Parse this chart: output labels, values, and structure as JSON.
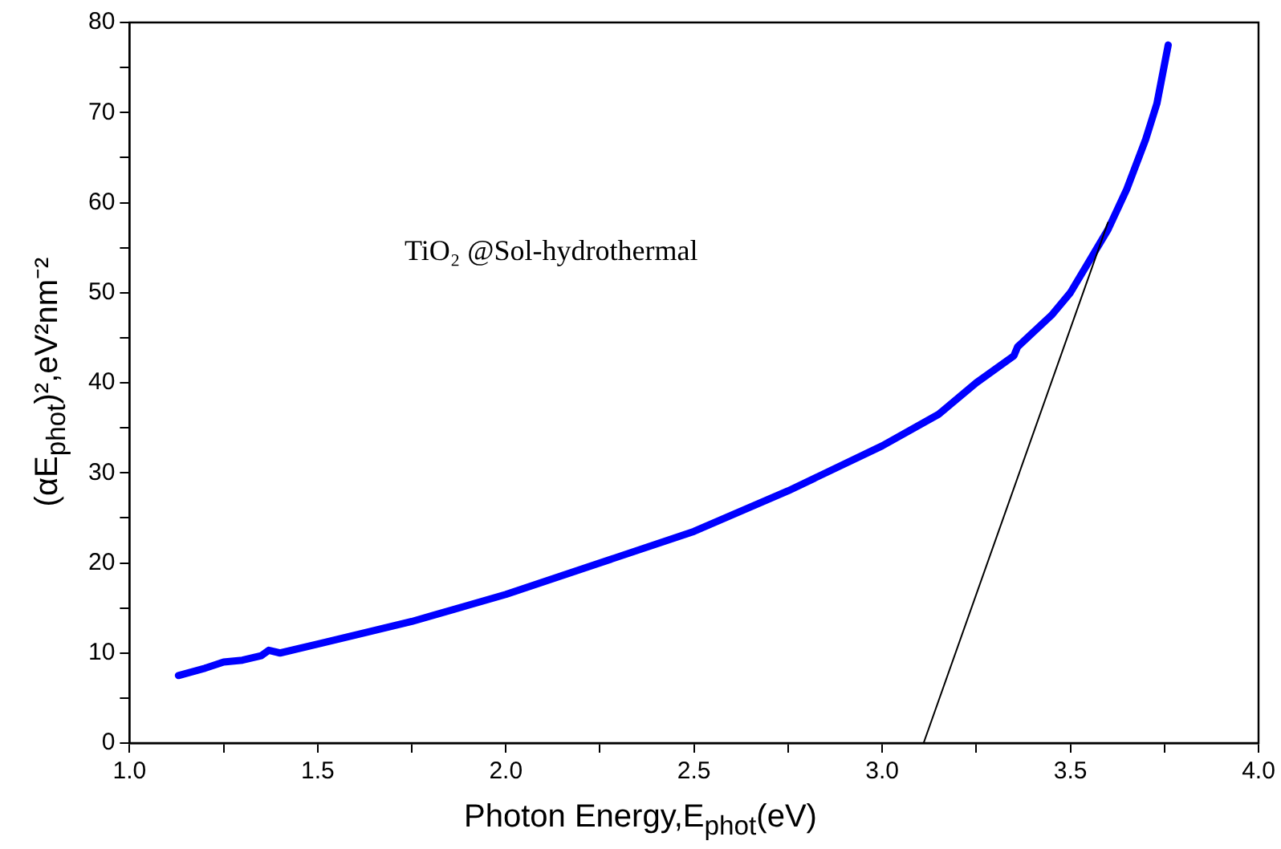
{
  "chart_data": {
    "type": "line",
    "xlabel": "Photon Energy,E$_{phot}$(eV)",
    "ylabel": "(αE$_{phot}$)²,eV²nm⁻²",
    "annotations": [
      "TiO₂ @Sol-hydrothermal"
    ],
    "xlim": [
      1,
      4
    ],
    "ylim": [
      0,
      80
    ],
    "xticks": [
      {
        "value": 1,
        "label": "1.0"
      },
      {
        "value": 1.25,
        "label": null
      },
      {
        "value": 1.5,
        "label": "1.5"
      },
      {
        "value": 1.75,
        "label": null
      },
      {
        "value": 2,
        "label": "2.0"
      },
      {
        "value": 2.25,
        "label": null
      },
      {
        "value": 2.5,
        "label": "2.5"
      },
      {
        "value": 2.75,
        "label": null
      },
      {
        "value": 3,
        "label": "3.0"
      },
      {
        "value": 3.25,
        "label": null
      },
      {
        "value": 3.5,
        "label": "3.5"
      },
      {
        "value": 3.75,
        "label": null
      },
      {
        "value": 4,
        "label": "4.0"
      }
    ],
    "yticks": [
      0,
      {
        "value": 5,
        "label": null
      },
      10,
      {
        "value": 15,
        "label": null
      },
      20,
      {
        "value": 25,
        "label": null
      },
      30,
      {
        "value": 35,
        "label": null
      },
      40,
      {
        "value": 45,
        "label": null
      },
      50,
      {
        "value": 55,
        "label": null
      },
      60,
      {
        "value": 65,
        "label": null
      },
      70,
      {
        "value": 75,
        "label": null
      },
      80
    ],
    "grid": false,
    "legend": false,
    "marker": "none",
    "line_style": "solid",
    "series": [
      {
        "color": "#0000ff",
        "x": [
          1.13,
          1.2,
          1.25,
          1.3,
          1.35,
          1.37,
          1.4,
          1.5,
          1.6,
          1.75,
          1.9,
          2.0,
          2.25,
          2.5,
          2.75,
          3.0,
          3.15,
          3.25,
          3.35,
          3.36,
          3.45,
          3.5,
          3.55,
          3.6,
          3.65,
          3.7,
          3.73,
          3.76
        ],
        "values": [
          7.5,
          8.3,
          9,
          9.2,
          9.7,
          10.3,
          10,
          11,
          12,
          13.5,
          15.3,
          16.5,
          20,
          23.5,
          28,
          33,
          36.5,
          40,
          43,
          44,
          47.5,
          50,
          53.5,
          57,
          61.5,
          67,
          71,
          77.5
        ]
      },
      {
        "color": "#000000",
        "x": [
          3.11,
          3.6
        ],
        "values": [
          0,
          57.8
        ]
      }
    ]
  }
}
